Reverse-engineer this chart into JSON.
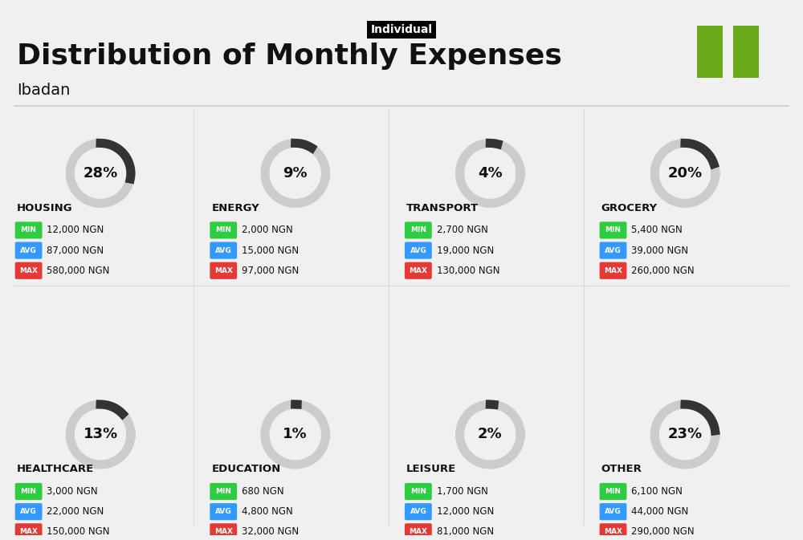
{
  "title": "Distribution of Monthly Expenses",
  "subtitle": "Individual",
  "location": "Ibadan",
  "background_color": "#f0f0f0",
  "title_color": "#111111",
  "categories": [
    {
      "name": "HOUSING",
      "pct": 28,
      "min_val": "12,000 NGN",
      "avg_val": "87,000 NGN",
      "max_val": "580,000 NGN",
      "row": 0,
      "col": 0
    },
    {
      "name": "ENERGY",
      "pct": 9,
      "min_val": "2,000 NGN",
      "avg_val": "15,000 NGN",
      "max_val": "97,000 NGN",
      "row": 0,
      "col": 1
    },
    {
      "name": "TRANSPORT",
      "pct": 4,
      "min_val": "2,700 NGN",
      "avg_val": "19,000 NGN",
      "max_val": "130,000 NGN",
      "row": 0,
      "col": 2
    },
    {
      "name": "GROCERY",
      "pct": 20,
      "min_val": "5,400 NGN",
      "avg_val": "39,000 NGN",
      "max_val": "260,000 NGN",
      "row": 0,
      "col": 3
    },
    {
      "name": "HEALTHCARE",
      "pct": 13,
      "min_val": "3,000 NGN",
      "avg_val": "22,000 NGN",
      "max_val": "150,000 NGN",
      "row": 1,
      "col": 0
    },
    {
      "name": "EDUCATION",
      "pct": 1,
      "min_val": "680 NGN",
      "avg_val": "4,800 NGN",
      "max_val": "32,000 NGN",
      "row": 1,
      "col": 1
    },
    {
      "name": "LEISURE",
      "pct": 2,
      "min_val": "1,700 NGN",
      "avg_val": "12,000 NGN",
      "max_val": "81,000 NGN",
      "row": 1,
      "col": 2
    },
    {
      "name": "OTHER",
      "pct": 23,
      "min_val": "6,100 NGN",
      "avg_val": "44,000 NGN",
      "max_val": "290,000 NGN",
      "row": 1,
      "col": 3
    }
  ],
  "min_color": "#2ecc40",
  "avg_color": "#3399ff",
  "max_color": "#e53935",
  "arc_color": "#333333",
  "arc_bg_color": "#cccccc",
  "flag_color": "#6aaa1a",
  "label_color_min": "#ffffff",
  "label_color_avg": "#ffffff",
  "label_color_max": "#ffffff"
}
